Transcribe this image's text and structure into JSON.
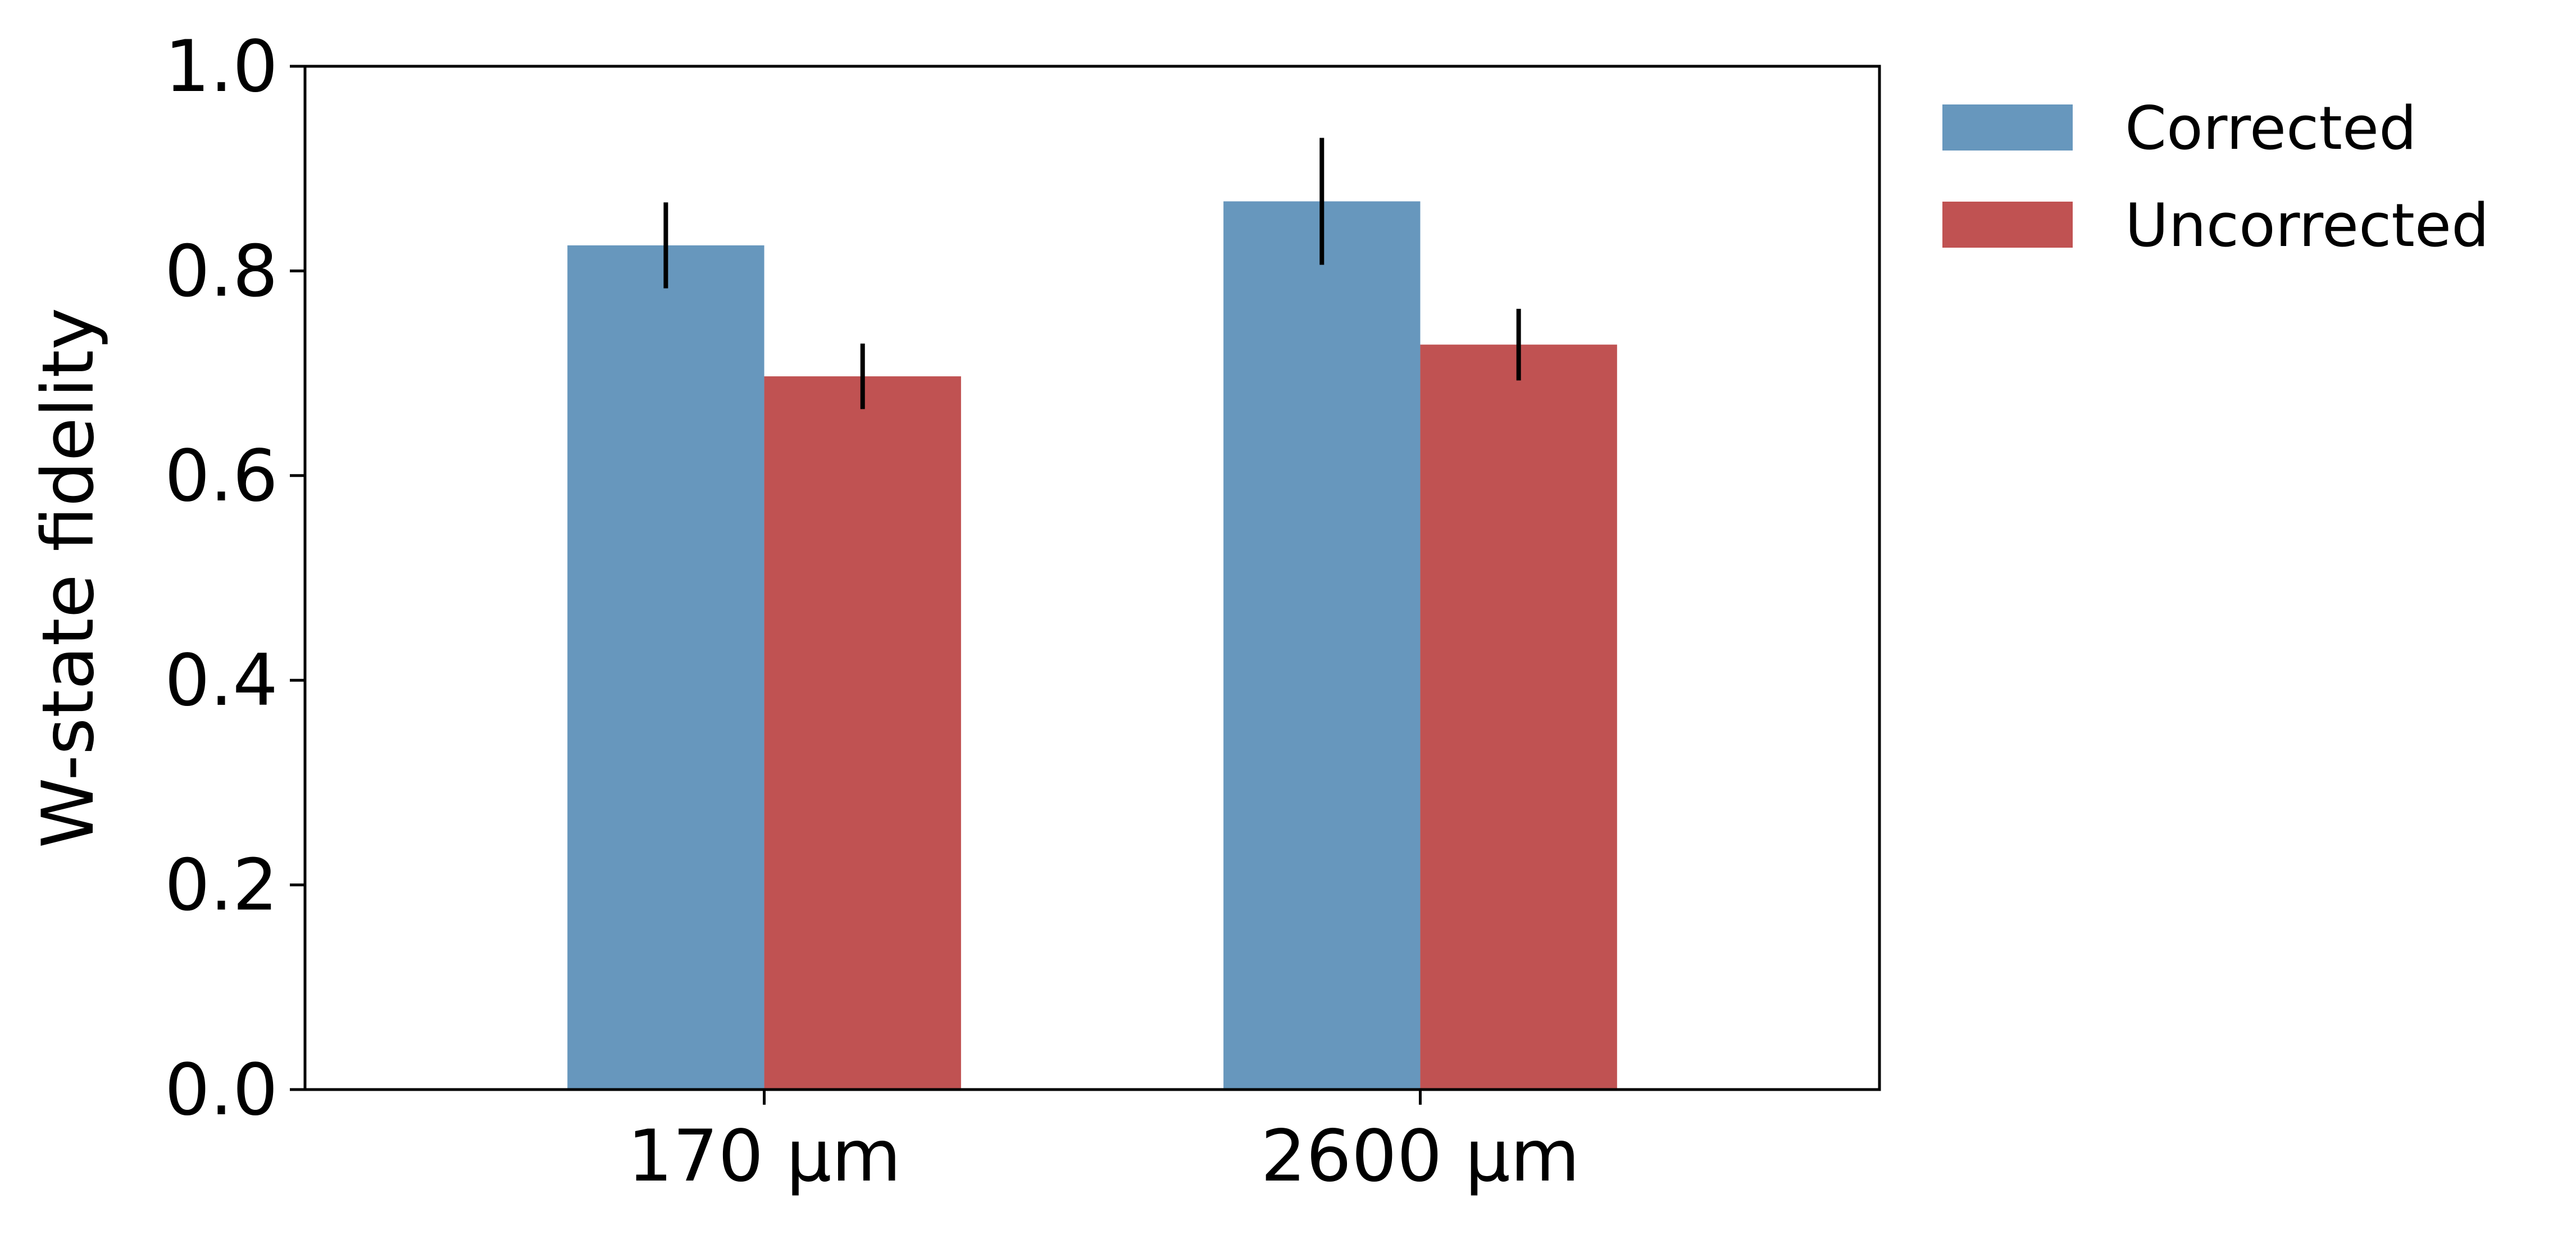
{
  "chart_data": {
    "type": "bar",
    "categories": [
      "170 μm",
      "2600 μm"
    ],
    "series": [
      {
        "name": "Corrected",
        "color": "#6797BD",
        "values": [
          0.825,
          0.868
        ],
        "errors": [
          0.042,
          0.062
        ]
      },
      {
        "name": "Uncorrected",
        "color": "#C05252",
        "values": [
          0.697,
          0.728
        ],
        "errors": [
          0.032,
          0.035
        ]
      }
    ],
    "ylabel": "W-state fidelity",
    "xlabel": "",
    "ylim": [
      0,
      1.0
    ],
    "yticks": [
      0.0,
      0.2,
      0.4,
      0.6,
      0.8,
      1.0
    ],
    "ytick_labels": [
      "0.0",
      "0.2",
      "0.4",
      "0.6",
      "0.8",
      "1.0"
    ],
    "legend_position": "outside-top-right",
    "grid": false
  }
}
